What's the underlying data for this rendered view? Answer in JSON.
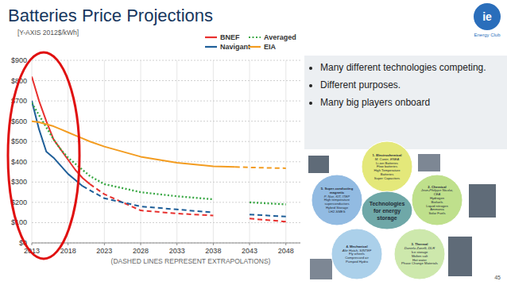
{
  "title": "Batteries Price Projections",
  "logo": {
    "mark": "ie",
    "text": "Energy Club"
  },
  "page_number": 45,
  "bullets": [
    "Many different technologies competing.",
    "Different purposes.",
    "Many big players onboard"
  ],
  "diagram": {
    "center": "Technologies for energy storage",
    "nodes": [
      {
        "title": "1. Electrochemical",
        "author": "M. Conte, ENEA",
        "items": [
          "Li-ion Batteries",
          "Flow batteries",
          "High Temperature Batteries",
          "Super Capacitors"
        ]
      },
      {
        "title": "2. Chemical",
        "author": "Jean-Philippe Nicolai, CEA",
        "items": [
          "Hydrogen",
          "Biofuels",
          "Liquid nitrogen",
          "Ammonia",
          "Solar Fuels"
        ]
      },
      {
        "title": "3. Thermal",
        "author": "Daniela Zanelli, DLR",
        "items": [
          "Ice storage",
          "Molten salt",
          "Hot water",
          "Phase Change Materials"
        ]
      },
      {
        "title": "4. Mechanical",
        "author": "Alte Hatch, SINTEF",
        "items": [
          "Fly wheels",
          "Compressed air",
          "Pumped Hydro"
        ]
      },
      {
        "title": "5. Super-conducting magnetic",
        "author": "P. Noe, KIT, ITEP",
        "items": [
          "High temperature superconductors",
          "Hybrid Storage",
          "LH2-SMES"
        ]
      }
    ]
  },
  "chart_data": {
    "type": "line",
    "y_label": "[Y-AXIS 2012$/kWh]",
    "annotation": "(DASHED LINES REPRESENT EXTRAPOLATIONS)",
    "x": [
      2013,
      2014,
      2015,
      2016,
      2017,
      2018,
      2019,
      2020,
      2021,
      2023,
      2028,
      2033,
      2038,
      2041,
      2043,
      2048
    ],
    "series": [
      {
        "name": "BNEF",
        "color": "#e8312f",
        "line_style": "solid",
        "values": [
          820,
          700,
          600,
          510,
          460,
          410,
          360,
          320,
          290,
          null,
          null,
          null,
          null,
          null,
          null,
          null
        ]
      },
      {
        "name": "BNEF",
        "color": "#e8312f",
        "line_style": "dashed",
        "values": [
          null,
          null,
          null,
          null,
          null,
          null,
          null,
          null,
          290,
          240,
          160,
          145,
          135,
          null,
          120,
          105
        ]
      },
      {
        "name": "Navigant",
        "color": "#1f5f99",
        "line_style": "solid",
        "values": [
          700,
          560,
          450,
          420,
          380,
          340,
          310,
          280,
          null,
          null,
          null,
          null,
          null,
          null,
          null,
          null
        ]
      },
      {
        "name": "Navigant",
        "color": "#1f5f99",
        "line_style": "dashed",
        "values": [
          null,
          null,
          null,
          null,
          null,
          null,
          null,
          280,
          260,
          220,
          180,
          165,
          150,
          null,
          140,
          130
        ]
      },
      {
        "name": "Averaged",
        "color": "#3aa845",
        "line_style": "dotted",
        "values": [
          690,
          630,
          570,
          510,
          460,
          420,
          390,
          360,
          330,
          290,
          250,
          230,
          215,
          null,
          200,
          190
        ]
      },
      {
        "name": "EIA",
        "color": "#f39c20",
        "line_style": "solid",
        "values": [
          600,
          595,
          585,
          575,
          560,
          545,
          530,
          515,
          500,
          475,
          425,
          395,
          378,
          375,
          null,
          null
        ]
      },
      {
        "name": "EIA",
        "color": "#f39c20",
        "line_style": "dashed",
        "values": [
          null,
          null,
          null,
          null,
          null,
          null,
          null,
          null,
          null,
          null,
          null,
          null,
          null,
          375,
          372,
          368
        ]
      }
    ],
    "xlim": [
      2013,
      2050
    ],
    "xticks": [
      2013,
      2018,
      2023,
      2028,
      2033,
      2038,
      2043,
      2048
    ],
    "ylim": [
      0,
      900
    ],
    "yticks": [
      {
        "value": 0,
        "label": "$0"
      },
      {
        "value": 100,
        "label": "$100"
      },
      {
        "value": 200,
        "label": "$200"
      },
      {
        "value": 300,
        "label": "$300"
      },
      {
        "value": 400,
        "label": "$400"
      },
      {
        "value": 500,
        "label": "$500"
      },
      {
        "value": 600,
        "label": "$600"
      },
      {
        "value": 700,
        "label": "$700"
      },
      {
        "value": 800,
        "label": "$800"
      },
      {
        "value": 900,
        "label": "$900"
      }
    ],
    "grid": true,
    "legend": "top-right"
  }
}
